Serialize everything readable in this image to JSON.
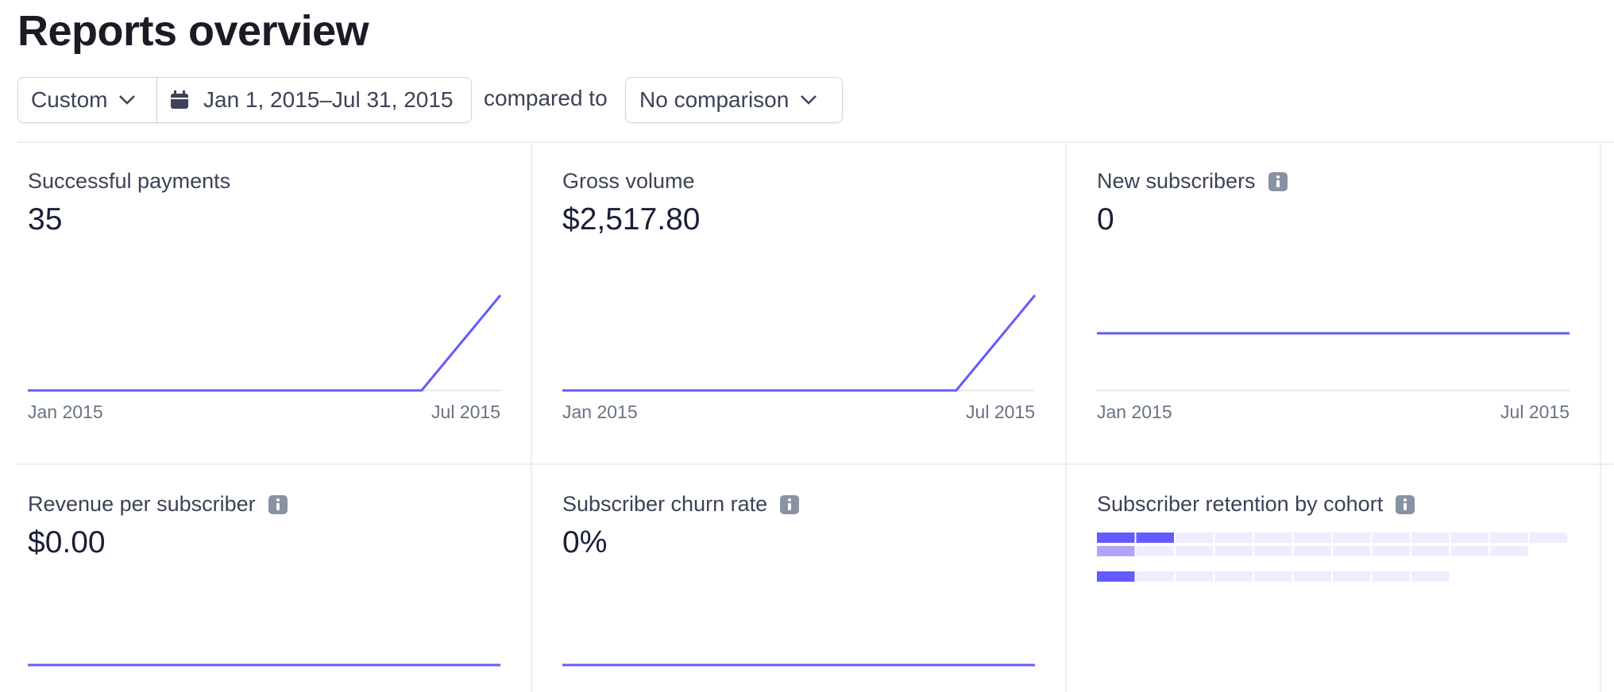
{
  "header": {
    "title": "Reports overview"
  },
  "filters": {
    "period": "Custom",
    "date_range": "Jan 1, 2015–Jul 31, 2015",
    "compared_label": "compared to",
    "comparison": "No comparison"
  },
  "cards": [
    {
      "label": "Successful payments",
      "value": "35",
      "info": false,
      "x_labels": [
        "Jan 2015",
        "Jul 2015"
      ],
      "series": [
        0,
        0,
        0,
        0,
        0,
        0,
        35
      ]
    },
    {
      "label": "Gross volume",
      "value": "$2,517.80",
      "info": false,
      "x_labels": [
        "Jan 2015",
        "Jul 2015"
      ],
      "series": [
        0,
        0,
        0,
        0,
        0,
        0,
        2517.8
      ]
    },
    {
      "label": "New subscribers",
      "value": "0",
      "info": true,
      "x_labels": [
        "Jan 2015",
        "Jul 2015"
      ],
      "series": [
        0,
        0,
        0,
        0,
        0,
        0,
        0
      ]
    },
    {
      "label": "Revenue per subscriber",
      "value": "$0.00",
      "info": true,
      "series": [
        0,
        0,
        0,
        0,
        0,
        0,
        0
      ]
    },
    {
      "label": "Subscriber churn rate",
      "value": "0%",
      "info": true,
      "series": [
        0,
        0,
        0,
        0,
        0,
        0,
        0
      ]
    },
    {
      "label": "Subscriber retention by cohort",
      "info": true
    }
  ]
}
